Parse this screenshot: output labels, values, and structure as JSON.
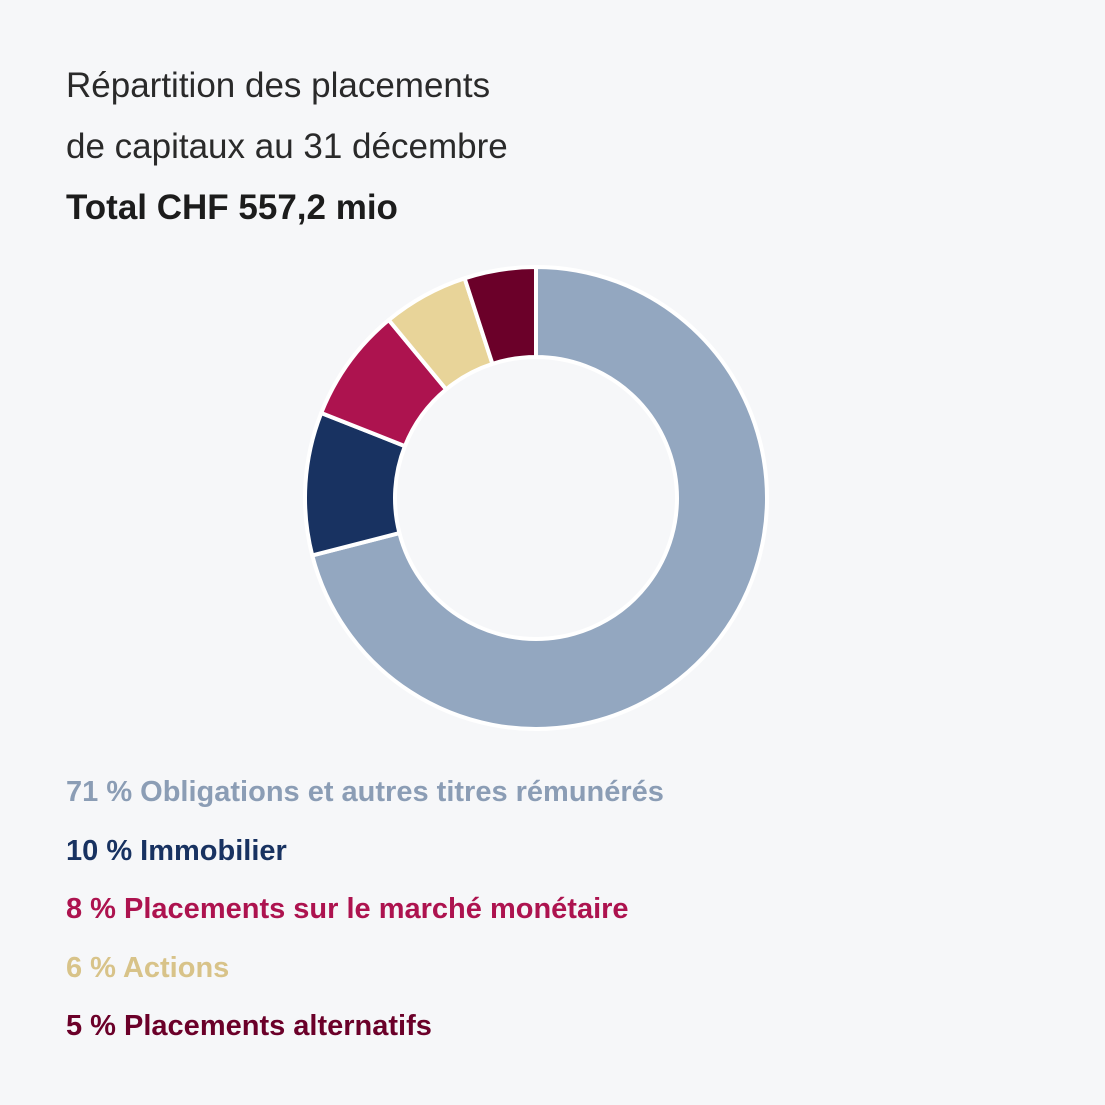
{
  "title_lines": [
    "Répartition des placements",
    "de capitaux au 31 décembre"
  ],
  "total": "Total CHF 557,2 mio",
  "chart_data": {
    "type": "pie",
    "variant": "donut",
    "categories": [
      "Obligations et autres titres rémunérés",
      "Immobilier",
      "Placements sur le marché monétaire",
      "Actions",
      "Placements alternatifs"
    ],
    "values": [
      71,
      10,
      8,
      6,
      5
    ],
    "colors": [
      "#93a7c0",
      "#183261",
      "#ad134f",
      "#e8d499",
      "#6b0029"
    ],
    "legend_placement": "bottom"
  },
  "legend": [
    {
      "text": "71 % Obligations et autres titres rémunérés",
      "color": "#8b9db5"
    },
    {
      "text": "10 % Immobilier",
      "color": "#183261"
    },
    {
      "text": "8 % Placements sur le marché monétaire",
      "color": "#ad134f"
    },
    {
      "text": "6 % Actions",
      "color": "#d8c389"
    },
    {
      "text": "5 % Placements alternatifs",
      "color": "#6b0029"
    }
  ]
}
